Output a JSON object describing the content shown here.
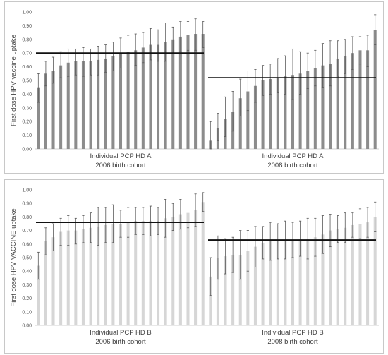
{
  "chart_data": [
    {
      "type": "bar",
      "ylabel": "First dose HPV vaccine uptake",
      "ylim": [
        0,
        1
      ],
      "yticks": [
        "0.00",
        "0.10",
        "0.20",
        "0.30",
        "0.40",
        "0.50",
        "0.60",
        "0.70",
        "0.80",
        "0.90",
        "1.00"
      ],
      "bar_color": "#8c8c8c",
      "groups": [
        {
          "label_line1": "Individual PCP HD A",
          "label_line2": "2006 birth cohort",
          "values": [
            0.45,
            0.55,
            0.57,
            0.61,
            0.63,
            0.64,
            0.64,
            0.64,
            0.65,
            0.66,
            0.68,
            0.7,
            0.71,
            0.72,
            0.74,
            0.76,
            0.76,
            0.78,
            0.8,
            0.82,
            0.83,
            0.84,
            0.84
          ],
          "upper": [
            0.55,
            0.64,
            0.67,
            0.71,
            0.73,
            0.73,
            0.74,
            0.73,
            0.75,
            0.76,
            0.78,
            0.81,
            0.83,
            0.84,
            0.85,
            0.88,
            0.87,
            0.92,
            0.89,
            0.93,
            0.93,
            0.95,
            0.93
          ],
          "lower": [
            0.34,
            0.46,
            0.48,
            0.52,
            0.53,
            0.54,
            0.53,
            0.54,
            0.54,
            0.56,
            0.57,
            0.59,
            0.59,
            0.61,
            0.63,
            0.65,
            0.64,
            0.64,
            0.7,
            0.71,
            0.72,
            0.72,
            0.74
          ],
          "reference": 0.7
        },
        {
          "label_line1": "Individual PCP HD A",
          "label_line2": "2008 birth cohort",
          "values": [
            0.06,
            0.15,
            0.22,
            0.27,
            0.37,
            0.42,
            0.46,
            0.5,
            0.51,
            0.52,
            0.53,
            0.54,
            0.55,
            0.57,
            0.59,
            0.61,
            0.62,
            0.66,
            0.68,
            0.7,
            0.72,
            0.72,
            0.87
          ],
          "upper": [
            0.2,
            0.26,
            0.38,
            0.42,
            0.51,
            0.57,
            0.58,
            0.61,
            0.62,
            0.66,
            0.68,
            0.73,
            0.71,
            0.7,
            0.72,
            0.77,
            0.79,
            0.79,
            0.8,
            0.82,
            0.82,
            0.83,
            0.98
          ],
          "lower": [
            0.0,
            0.06,
            0.09,
            0.13,
            0.24,
            0.28,
            0.34,
            0.39,
            0.4,
            0.41,
            0.4,
            0.36,
            0.4,
            0.44,
            0.46,
            0.45,
            0.46,
            0.53,
            0.55,
            0.58,
            0.62,
            0.6,
            0.76
          ],
          "reference": 0.52
        }
      ]
    },
    {
      "type": "bar",
      "ylabel": "First dose HPV VACCINE uptake",
      "ylim": [
        0,
        1
      ],
      "yticks": [
        "0.00",
        "0.10",
        "0.20",
        "0.30",
        "0.40",
        "0.50",
        "0.60",
        "0.70",
        "0.80",
        "0.90",
        "1.00"
      ],
      "bar_color": "#d6d6d6",
      "groups": [
        {
          "label_line1": "Individual PCP HD B",
          "label_line2": "2006 birth cohort",
          "values": [
            0.44,
            0.62,
            0.65,
            0.69,
            0.7,
            0.7,
            0.71,
            0.72,
            0.73,
            0.74,
            0.75,
            0.75,
            0.76,
            0.77,
            0.77,
            0.77,
            0.77,
            0.79,
            0.8,
            0.82,
            0.83,
            0.85,
            0.91
          ],
          "upper": [
            0.54,
            0.72,
            0.75,
            0.79,
            0.81,
            0.79,
            0.81,
            0.83,
            0.87,
            0.87,
            0.89,
            0.85,
            0.87,
            0.87,
            0.87,
            0.88,
            0.87,
            0.93,
            0.9,
            0.93,
            0.94,
            0.97,
            0.98
          ],
          "lower": [
            0.34,
            0.52,
            0.55,
            0.59,
            0.59,
            0.6,
            0.61,
            0.61,
            0.59,
            0.61,
            0.61,
            0.65,
            0.65,
            0.67,
            0.67,
            0.66,
            0.67,
            0.65,
            0.7,
            0.71,
            0.72,
            0.73,
            0.84
          ],
          "reference": 0.76
        },
        {
          "label_line1": "Individual PCP HD B",
          "label_line2": "2008 birth cohort",
          "values": [
            0.36,
            0.5,
            0.51,
            0.52,
            0.52,
            0.55,
            0.58,
            0.61,
            0.62,
            0.62,
            0.63,
            0.63,
            0.64,
            0.64,
            0.65,
            0.67,
            0.7,
            0.71,
            0.72,
            0.74,
            0.75,
            0.76,
            0.8
          ],
          "upper": [
            0.5,
            0.66,
            0.64,
            0.65,
            0.7,
            0.7,
            0.73,
            0.73,
            0.76,
            0.75,
            0.77,
            0.76,
            0.77,
            0.79,
            0.79,
            0.81,
            0.82,
            0.81,
            0.83,
            0.83,
            0.86,
            0.87,
            0.91
          ],
          "lower": [
            0.22,
            0.34,
            0.38,
            0.39,
            0.34,
            0.4,
            0.43,
            0.49,
            0.48,
            0.49,
            0.49,
            0.5,
            0.51,
            0.49,
            0.51,
            0.53,
            0.58,
            0.61,
            0.61,
            0.65,
            0.64,
            0.65,
            0.69
          ],
          "reference": 0.63
        }
      ]
    }
  ]
}
